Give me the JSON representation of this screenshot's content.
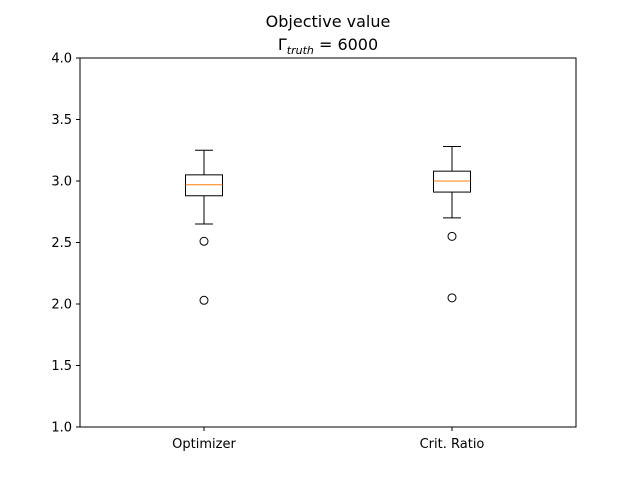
{
  "chart_data": {
    "type": "box",
    "title_line1": "Objective value",
    "title_line2_symbol": "Γ",
    "title_line2_subscript": "truth",
    "title_line2_rest": " = 6000",
    "xlabel": "",
    "ylabel": "",
    "ylim": [
      1.0,
      4.0
    ],
    "yticks": [
      1.0,
      1.5,
      2.0,
      2.5,
      3.0,
      3.5,
      4.0
    ],
    "ytick_labels": [
      "1.0",
      "1.5",
      "2.0",
      "2.5",
      "3.0",
      "3.5",
      "4.0"
    ],
    "categories": [
      "Optimizer",
      "Crit. Ratio"
    ],
    "boxes": [
      {
        "whisker_low": 2.65,
        "q1": 2.88,
        "median": 2.97,
        "q3": 3.05,
        "whisker_high": 3.25,
        "outliers": [
          2.51,
          2.03
        ]
      },
      {
        "whisker_low": 2.7,
        "q1": 2.91,
        "median": 3.0,
        "q3": 3.08,
        "whisker_high": 3.28,
        "outliers": [
          2.55,
          2.05
        ]
      }
    ],
    "grid": false,
    "median_color": "#ff7f0e",
    "box_color": "#000000"
  }
}
